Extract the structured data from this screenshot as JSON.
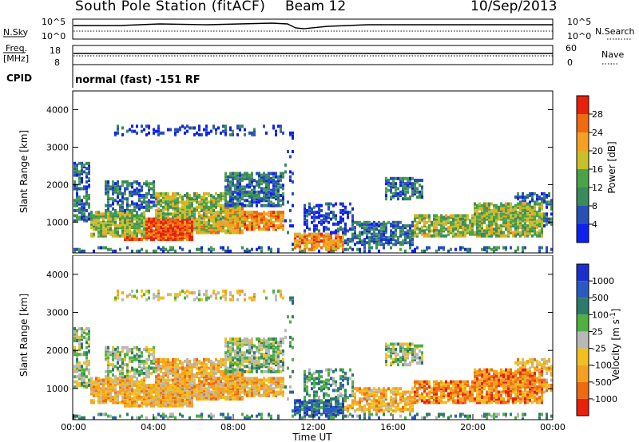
{
  "header": {
    "station": "South Pole Station (fitACF)",
    "beam": "Beam 12",
    "date": "10/Sep/2013"
  },
  "top_panels": {
    "nsky_label": "N.Sky",
    "nsky_ticks": [
      "10^5",
      "10^0"
    ],
    "nsearch_label": "N.Search",
    "nsearch_ticks": [
      "10^5",
      "10^0"
    ],
    "freq_label_1": "Freq.",
    "freq_label_2": "[MHz]",
    "freq_ticks": [
      "18",
      "8"
    ],
    "nave_label": "Nave",
    "nave_ticks": [
      "60",
      "0"
    ],
    "cpid_label": "CPID",
    "cpid_value": "normal (fast) -151 RF"
  },
  "colors": {
    "power": [
      "#1020f0",
      "#2850b8",
      "#3b8a5c",
      "#4aa24a",
      "#c8c028",
      "#f5a020",
      "#f06a10",
      "#e8200c"
    ],
    "velocity": [
      "#1b2fd0",
      "#2a5ac0",
      "#2e7a68",
      "#4fb040",
      "#b8b8b8",
      "#f0c020",
      "#f5a020",
      "#f06a10",
      "#e8200c"
    ]
  },
  "chart_data": [
    {
      "type": "heatmap",
      "title": "Power",
      "ylabel": "Slant Range [km]",
      "y_ticks": [
        "4000",
        "3000",
        "2000",
        "1000"
      ],
      "ylim": [
        180,
        4500
      ],
      "x_range_hours": [
        0,
        24
      ],
      "colorbar_label": "Power [dB]",
      "colorbar_ticks": [
        "28",
        "24",
        "20",
        "16",
        "12",
        "8",
        "4"
      ],
      "colorbar_range": [
        0,
        32
      ]
    },
    {
      "type": "heatmap",
      "title": "Velocity",
      "xlabel": "Time UT",
      "ylabel": "Slant Range [km]",
      "x_ticks": [
        "00:00",
        "04:00",
        "08:00",
        "12:00",
        "16:00",
        "20:00",
        "00:00"
      ],
      "y_ticks": [
        "4000",
        "3000",
        "2000",
        "1000"
      ],
      "ylim": [
        180,
        4500
      ],
      "x_range_hours": [
        0,
        24
      ],
      "colorbar_label": "Velocity [m s^-1]",
      "colorbar_ticks": [
        "1000",
        "500",
        "100",
        "25",
        "-25",
        "-100",
        "-500",
        "-1000"
      ]
    }
  ]
}
